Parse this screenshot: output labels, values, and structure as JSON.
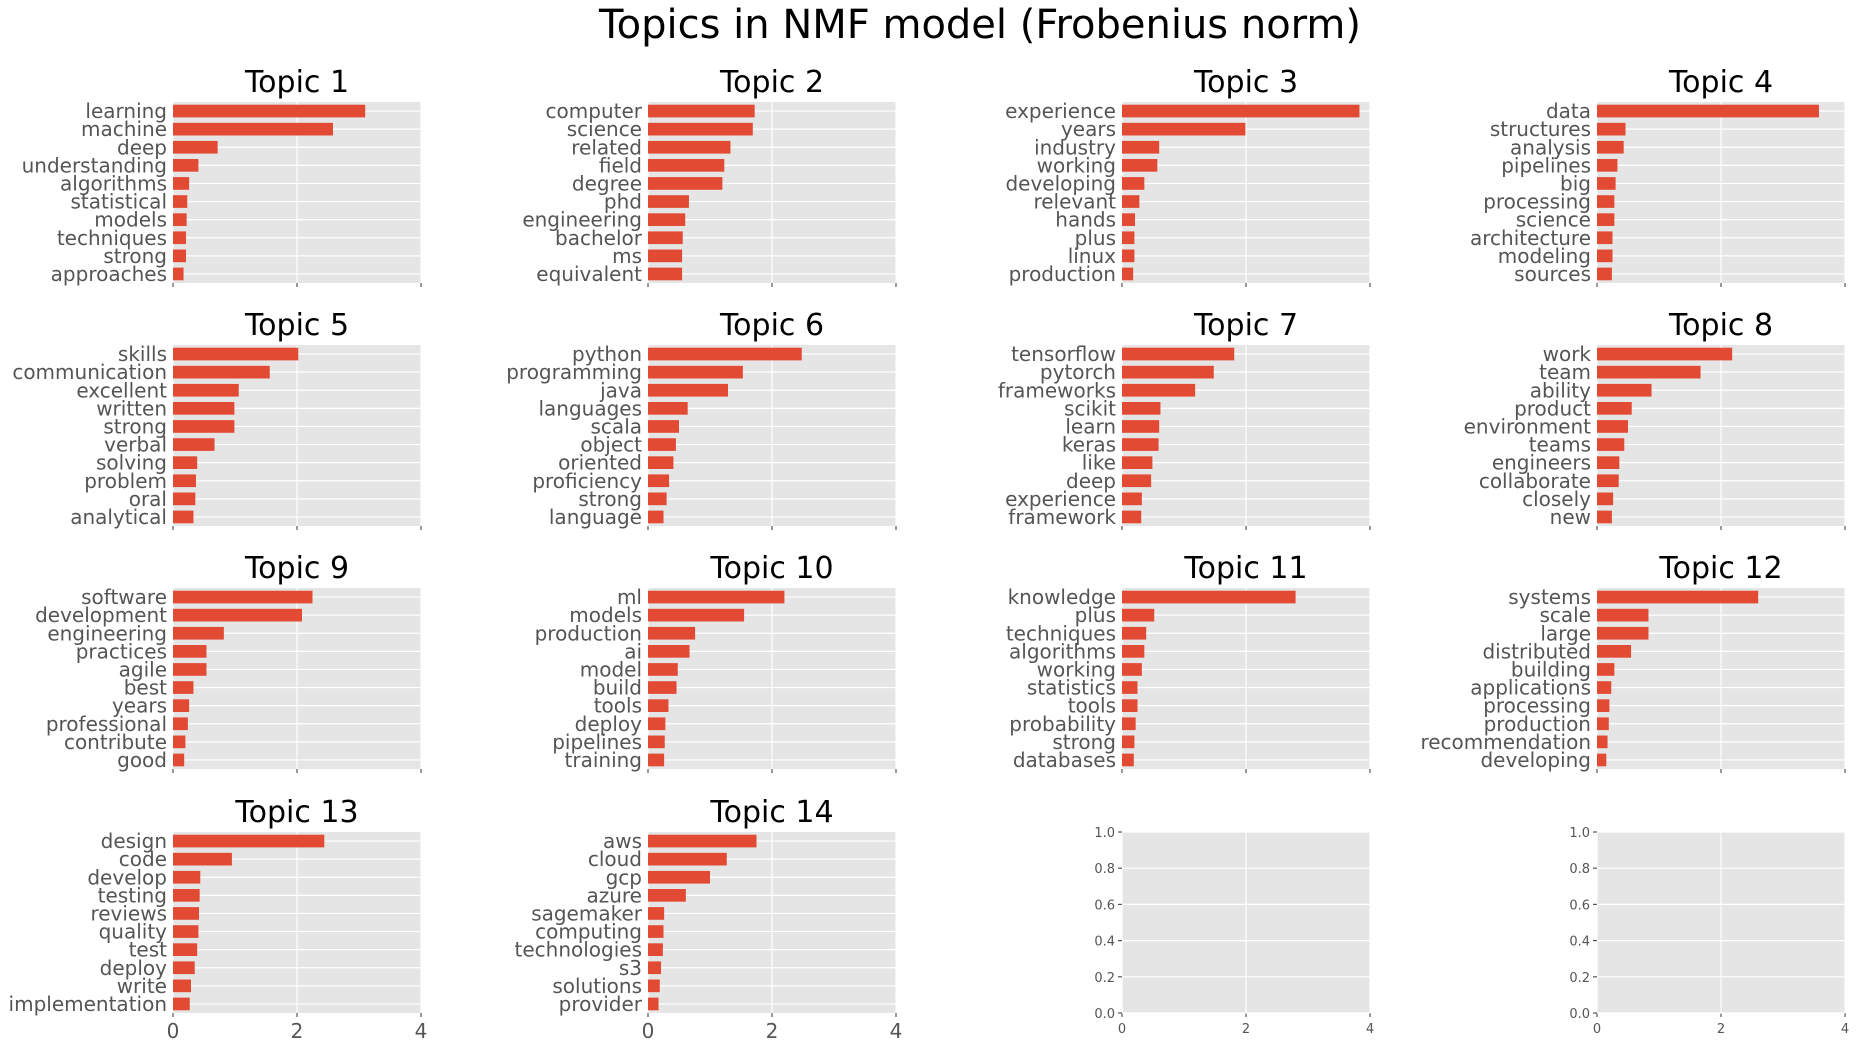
{
  "figure_title": "Topics in NMF model (Frobenius norm)",
  "colors": {
    "bar": "#e24a33",
    "panel_background": "#e5e5e5",
    "grid": "#ffffff",
    "tick_text": "#555555"
  },
  "chart_data": [
    {
      "type": "bar",
      "orientation": "horizontal",
      "title": "Topic 1",
      "categories": [
        "learning",
        "machine",
        "deep",
        "understanding",
        "algorithms",
        "statistical",
        "models",
        "techniques",
        "strong",
        "approaches"
      ],
      "values": [
        3.1,
        2.58,
        0.72,
        0.41,
        0.26,
        0.23,
        0.22,
        0.21,
        0.21,
        0.17
      ],
      "xlim": [
        0,
        4
      ],
      "xticks": [
        0,
        2,
        4
      ],
      "grid": true
    },
    {
      "type": "bar",
      "orientation": "horizontal",
      "title": "Topic 2",
      "categories": [
        "computer",
        "science",
        "related",
        "field",
        "degree",
        "phd",
        "engineering",
        "bachelor",
        "ms",
        "equivalent"
      ],
      "values": [
        1.72,
        1.69,
        1.33,
        1.23,
        1.2,
        0.66,
        0.6,
        0.56,
        0.55,
        0.55
      ],
      "xlim": [
        0,
        4
      ],
      "xticks": [
        0,
        2,
        4
      ],
      "grid": true
    },
    {
      "type": "bar",
      "orientation": "horizontal",
      "title": "Topic 3",
      "categories": [
        "experience",
        "years",
        "industry",
        "working",
        "developing",
        "relevant",
        "hands",
        "plus",
        "linux",
        "production"
      ],
      "values": [
        3.83,
        1.99,
        0.6,
        0.57,
        0.36,
        0.28,
        0.21,
        0.2,
        0.2,
        0.18
      ],
      "xlim": [
        0,
        4
      ],
      "xticks": [
        0,
        2,
        4
      ],
      "grid": true
    },
    {
      "type": "bar",
      "orientation": "horizontal",
      "title": "Topic 4",
      "categories": [
        "data",
        "structures",
        "analysis",
        "pipelines",
        "big",
        "processing",
        "science",
        "architecture",
        "modeling",
        "sources"
      ],
      "values": [
        3.58,
        0.46,
        0.43,
        0.33,
        0.3,
        0.28,
        0.28,
        0.25,
        0.25,
        0.24
      ],
      "xlim": [
        0,
        4
      ],
      "xticks": [
        0,
        2,
        4
      ],
      "grid": true
    },
    {
      "type": "bar",
      "orientation": "horizontal",
      "title": "Topic 5",
      "categories": [
        "skills",
        "communication",
        "excellent",
        "written",
        "strong",
        "verbal",
        "solving",
        "problem",
        "oral",
        "analytical"
      ],
      "values": [
        2.02,
        1.56,
        1.06,
        0.99,
        0.99,
        0.67,
        0.39,
        0.37,
        0.36,
        0.33
      ],
      "xlim": [
        0,
        4
      ],
      "xticks": [
        0,
        2,
        4
      ],
      "grid": true
    },
    {
      "type": "bar",
      "orientation": "horizontal",
      "title": "Topic 6",
      "categories": [
        "python",
        "programming",
        "java",
        "languages",
        "scala",
        "object",
        "oriented",
        "proficiency",
        "strong",
        "language"
      ],
      "values": [
        2.48,
        1.53,
        1.29,
        0.64,
        0.5,
        0.45,
        0.41,
        0.34,
        0.3,
        0.25
      ],
      "xlim": [
        0,
        4
      ],
      "xticks": [
        0,
        2,
        4
      ],
      "grid": true
    },
    {
      "type": "bar",
      "orientation": "horizontal",
      "title": "Topic 7",
      "categories": [
        "tensorflow",
        "pytorch",
        "frameworks",
        "scikit",
        "learn",
        "keras",
        "like",
        "deep",
        "experience",
        "framework"
      ],
      "values": [
        1.81,
        1.48,
        1.18,
        0.62,
        0.6,
        0.59,
        0.49,
        0.47,
        0.32,
        0.31
      ],
      "xlim": [
        0,
        4
      ],
      "xticks": [
        0,
        2,
        4
      ],
      "grid": true
    },
    {
      "type": "bar",
      "orientation": "horizontal",
      "title": "Topic 8",
      "categories": [
        "work",
        "team",
        "ability",
        "product",
        "environment",
        "teams",
        "engineers",
        "collaborate",
        "closely",
        "new"
      ],
      "values": [
        2.18,
        1.67,
        0.88,
        0.56,
        0.5,
        0.44,
        0.36,
        0.35,
        0.26,
        0.24
      ],
      "xlim": [
        0,
        4
      ],
      "xticks": [
        0,
        2,
        4
      ],
      "grid": true
    },
    {
      "type": "bar",
      "orientation": "horizontal",
      "title": "Topic 9",
      "categories": [
        "software",
        "development",
        "engineering",
        "practices",
        "agile",
        "best",
        "years",
        "professional",
        "contribute",
        "good"
      ],
      "values": [
        2.25,
        2.08,
        0.82,
        0.54,
        0.54,
        0.33,
        0.26,
        0.24,
        0.2,
        0.18
      ],
      "xlim": [
        0,
        4
      ],
      "xticks": [
        0,
        2,
        4
      ],
      "grid": true
    },
    {
      "type": "bar",
      "orientation": "horizontal",
      "title": "Topic 10",
      "categories": [
        "ml",
        "models",
        "production",
        "ai",
        "model",
        "build",
        "tools",
        "deploy",
        "pipelines",
        "training"
      ],
      "values": [
        2.2,
        1.55,
        0.76,
        0.67,
        0.48,
        0.46,
        0.33,
        0.28,
        0.27,
        0.26
      ],
      "xlim": [
        0,
        4
      ],
      "xticks": [
        0,
        2,
        4
      ],
      "grid": true
    },
    {
      "type": "bar",
      "orientation": "horizontal",
      "title": "Topic 11",
      "categories": [
        "knowledge",
        "plus",
        "techniques",
        "algorithms",
        "working",
        "statistics",
        "tools",
        "probability",
        "strong",
        "databases"
      ],
      "values": [
        2.8,
        0.52,
        0.39,
        0.36,
        0.32,
        0.25,
        0.25,
        0.22,
        0.2,
        0.19
      ],
      "xlim": [
        0,
        4
      ],
      "xticks": [
        0,
        2,
        4
      ],
      "grid": true
    },
    {
      "type": "bar",
      "orientation": "horizontal",
      "title": "Topic 12",
      "categories": [
        "systems",
        "scale",
        "large",
        "distributed",
        "building",
        "applications",
        "processing",
        "production",
        "recommendation",
        "developing"
      ],
      "values": [
        2.6,
        0.83,
        0.83,
        0.55,
        0.28,
        0.23,
        0.2,
        0.19,
        0.17,
        0.15
      ],
      "xlim": [
        0,
        4
      ],
      "xticks": [
        0,
        2,
        4
      ],
      "grid": true
    },
    {
      "type": "bar",
      "orientation": "horizontal",
      "title": "Topic 13",
      "categories": [
        "design",
        "code",
        "develop",
        "testing",
        "reviews",
        "quality",
        "test",
        "deploy",
        "write",
        "implementation"
      ],
      "values": [
        2.44,
        0.95,
        0.44,
        0.43,
        0.42,
        0.41,
        0.39,
        0.35,
        0.29,
        0.27
      ],
      "xlim": [
        0,
        4
      ],
      "xticks": [
        0,
        2,
        4
      ],
      "grid": true
    },
    {
      "type": "bar",
      "orientation": "horizontal",
      "title": "Topic 14",
      "categories": [
        "aws",
        "cloud",
        "gcp",
        "azure",
        "sagemaker",
        "computing",
        "technologies",
        "s3",
        "solutions",
        "provider"
      ],
      "values": [
        1.75,
        1.27,
        1.0,
        0.61,
        0.26,
        0.25,
        0.24,
        0.21,
        0.19,
        0.17
      ],
      "xlim": [
        0,
        4
      ],
      "xticks": [
        0,
        2,
        4
      ],
      "grid": true
    },
    {
      "type": "bar",
      "title": "",
      "categories": [],
      "values": [],
      "xlim": [
        0,
        4
      ],
      "xticks": [
        0,
        2,
        4
      ],
      "ylim": [
        0,
        1
      ],
      "yticks": [
        0.0,
        0.2,
        0.4,
        0.6,
        0.8,
        1.0
      ],
      "grid": true,
      "empty": true
    },
    {
      "type": "bar",
      "title": "",
      "categories": [],
      "values": [],
      "xlim": [
        0,
        4
      ],
      "xticks": [
        0,
        2,
        4
      ],
      "ylim": [
        0,
        1
      ],
      "yticks": [
        0.0,
        0.2,
        0.4,
        0.6,
        0.8,
        1.0
      ],
      "grid": true,
      "empty": true
    }
  ]
}
